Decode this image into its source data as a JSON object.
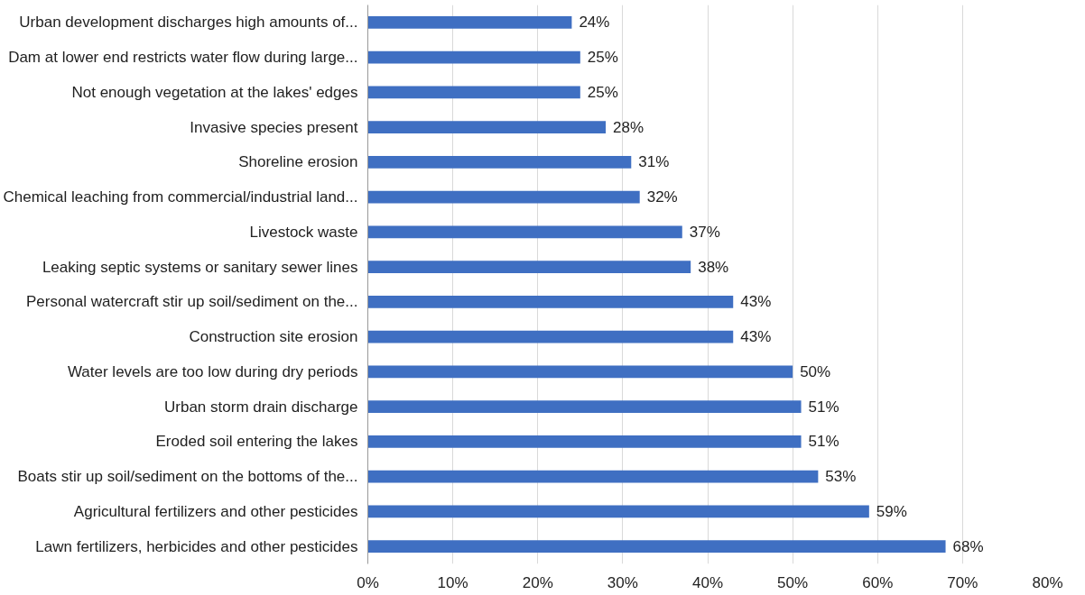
{
  "chart_data": {
    "type": "bar",
    "orientation": "horizontal",
    "categories": [
      "Urban development discharges high amounts of...",
      "Dam at lower end restricts water flow during large...",
      "Not enough vegetation at the lakes' edges",
      "Invasive species present",
      "Shoreline erosion",
      "Chemical leaching from commercial/industrial land...",
      "Livestock waste",
      "Leaking septic systems or sanitary sewer lines",
      "Personal watercraft stir up soil/sediment on the...",
      "Construction site erosion",
      "Water levels are too low during dry periods",
      "Urban storm drain discharge",
      "Eroded soil entering the lakes",
      "Boats stir up soil/sediment on the bottoms of the...",
      "Agricultural fertilizers and other pesticides",
      "Lawn fertilizers, herbicides and other pesticides"
    ],
    "values": [
      24,
      25,
      25,
      28,
      31,
      32,
      37,
      38,
      43,
      43,
      50,
      51,
      51,
      53,
      59,
      68
    ],
    "value_labels": [
      "24%",
      "25%",
      "25%",
      "28%",
      "31%",
      "32%",
      "37%",
      "38%",
      "43%",
      "43%",
      "50%",
      "51%",
      "51%",
      "53%",
      "59%",
      "68%"
    ],
    "color": "#3f6fc2",
    "xlim": [
      0,
      80
    ],
    "xticks": [
      {
        "value": 0,
        "label": "0%"
      },
      {
        "value": 10,
        "label": "10%"
      },
      {
        "value": 20,
        "label": "20%"
      },
      {
        "value": 30,
        "label": "30%"
      },
      {
        "value": 40,
        "label": "40%"
      },
      {
        "value": 50,
        "label": "50%"
      },
      {
        "value": 60,
        "label": "60%"
      },
      {
        "value": 70,
        "label": "70%"
      },
      {
        "value": 80,
        "label": "80%"
      }
    ],
    "grid": "x"
  }
}
